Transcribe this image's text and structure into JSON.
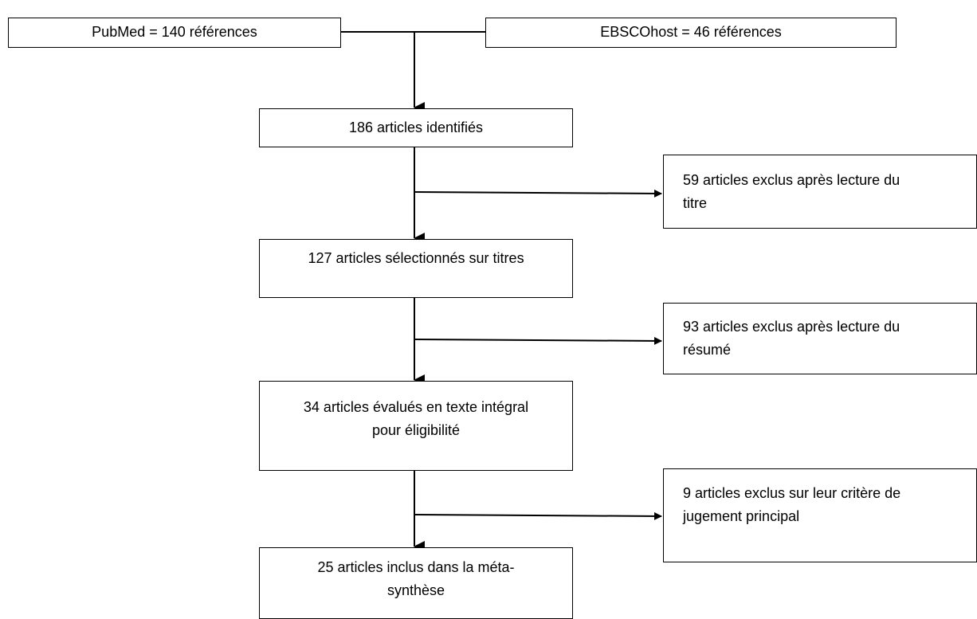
{
  "boxes": {
    "pubmed": "PubMed = 140 références",
    "ebsco": "EBSCOhost = 46 références",
    "identified": "186 articles identifiés",
    "excluded_title": [
      "59 articles exclus après lecture du",
      "titre"
    ],
    "selected_titles": "127 articles sélectionnés sur titres",
    "excluded_abstract": [
      "93 articles exclus après lecture du",
      "résumé"
    ],
    "fulltext": [
      "34 articles évalués en texte intégral",
      "pour éligibilité"
    ],
    "excluded_criterion": [
      "9 articles exclus sur leur critère de",
      "jugement principal"
    ],
    "included": [
      "25 articles inclus dans la méta-",
      "synthèse"
    ]
  },
  "colors": {
    "line": "#000000",
    "background": "#ffffff"
  }
}
